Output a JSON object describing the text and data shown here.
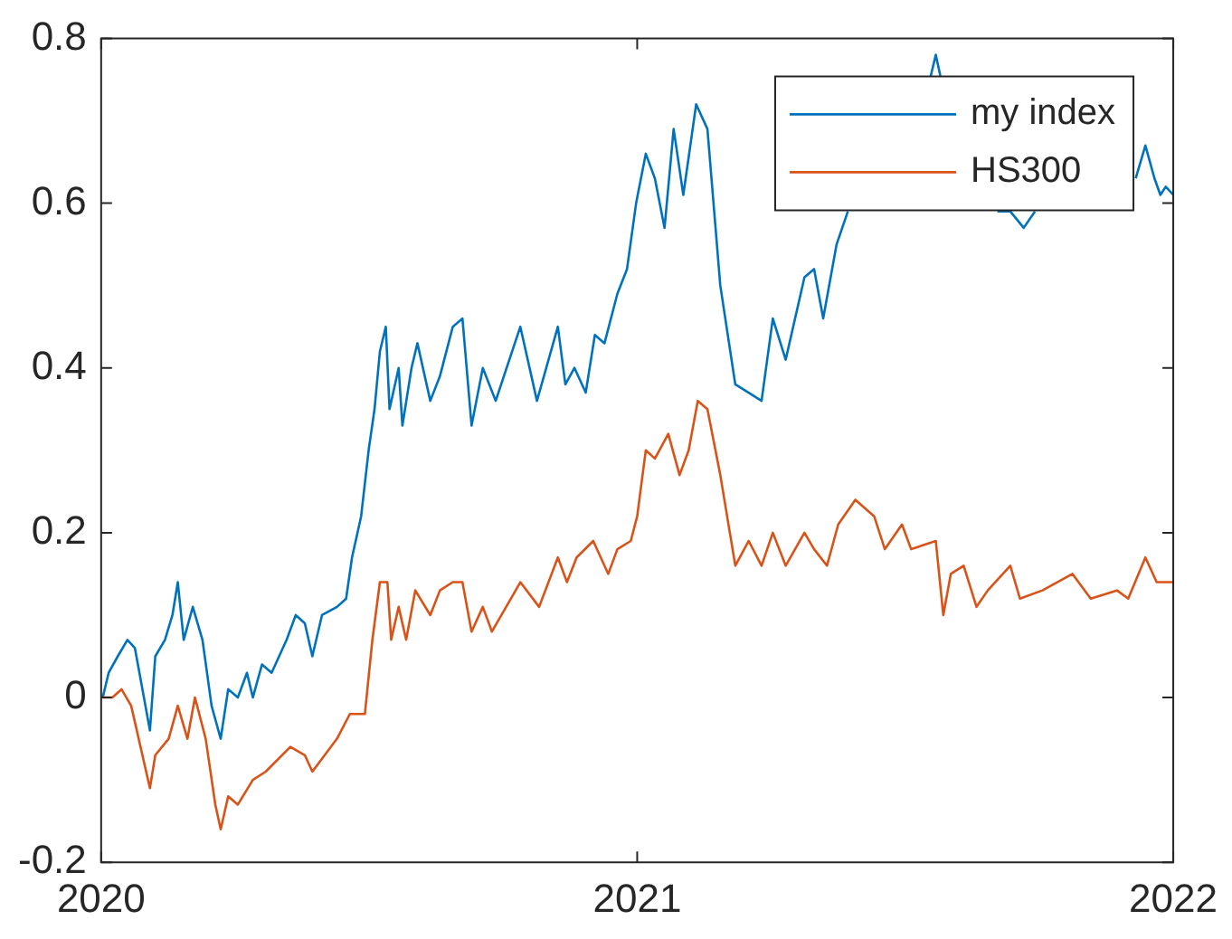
{
  "chart_data": {
    "type": "line",
    "legend": "top right",
    "grid": false,
    "marker": "none",
    "line_style": "solid",
    "xlim": [
      2020,
      2022
    ],
    "xticks": [
      2020,
      2021,
      2022
    ],
    "ylim": [
      -0.2,
      0.8
    ],
    "yticks": [
      {
        "value": -0.2,
        "label": "-0.2"
      },
      0,
      {
        "value": 0.2,
        "label": "0.2"
      },
      {
        "value": 0.4,
        "label": "0.4"
      },
      {
        "value": 0.6,
        "label": "0.6"
      },
      {
        "value": 0.8,
        "label": "0.8"
      }
    ],
    "series": [
      {
        "name": "my index",
        "color": "#0072bd",
        "x": [
          2020.003,
          2020.014,
          2020.031,
          2020.049,
          2020.063,
          2020.091,
          2020.101,
          2020.119,
          2020.133,
          2020.143,
          2020.154,
          2020.171,
          2020.189,
          2020.206,
          2020.223,
          2020.237,
          2020.255,
          2020.272,
          2020.283,
          2020.3,
          2020.318,
          2020.346,
          2020.363,
          2020.38,
          2020.394,
          2020.412,
          2020.44,
          2020.457,
          2020.468,
          2020.485,
          2020.499,
          2020.51,
          2020.52,
          2020.531,
          2020.538,
          2020.555,
          2020.562,
          2020.579,
          2020.59,
          2020.614,
          2020.632,
          2020.656,
          2020.674,
          2020.691,
          2020.712,
          2020.736,
          2020.782,
          2020.813,
          2020.852,
          2020.866,
          2020.883,
          2020.904,
          2020.921,
          2020.939,
          2020.963,
          2020.981,
          2020.998,
          2021.016,
          2021.033,
          2021.051,
          2021.068,
          2021.086,
          2021.11,
          2021.131,
          2021.155,
          2021.183,
          2021.208,
          2021.232,
          2021.253,
          2021.277,
          2021.312,
          2021.33,
          2021.347,
          2021.372,
          2021.393,
          2021.45,
          2021.546,
          2021.557,
          2021.567,
          2021.6,
          2021.672,
          2021.696,
          2021.721,
          2021.742,
          2021.8,
          2021.93,
          2021.948,
          2021.965,
          2021.976,
          2021.986,
          2022
        ],
        "values": [
          0,
          0.03,
          0.05,
          0.07,
          0.06,
          -0.04,
          0.05,
          0.07,
          0.1,
          0.14,
          0.07,
          0.11,
          0.07,
          -0.01,
          -0.05,
          0.01,
          0,
          0.03,
          0,
          0.04,
          0.03,
          0.07,
          0.1,
          0.09,
          0.05,
          0.1,
          0.11,
          0.12,
          0.17,
          0.22,
          0.3,
          0.35,
          0.42,
          0.45,
          0.35,
          0.4,
          0.33,
          0.4,
          0.43,
          0.36,
          0.39,
          0.45,
          0.46,
          0.33,
          0.4,
          0.36,
          0.45,
          0.36,
          0.45,
          0.38,
          0.4,
          0.37,
          0.44,
          0.43,
          0.49,
          0.52,
          0.6,
          0.66,
          0.63,
          0.57,
          0.69,
          0.61,
          0.72,
          0.69,
          0.5,
          0.38,
          0.37,
          0.36,
          0.46,
          0.41,
          0.51,
          0.52,
          0.46,
          0.55,
          0.59,
          null,
          0.75,
          0.78,
          0.75,
          null,
          0.59,
          0.59,
          0.57,
          0.59,
          null,
          0.63,
          0.67,
          0.63,
          0.61,
          0.62,
          0.61
        ]
      },
      {
        "name": "HS300",
        "color": "#d95319",
        "x": [
          2020.003,
          2020.021,
          2020.038,
          2020.056,
          2020.091,
          2020.101,
          2020.126,
          2020.143,
          2020.161,
          2020.175,
          2020.195,
          2020.213,
          2020.223,
          2020.237,
          2020.255,
          2020.283,
          2020.307,
          2020.353,
          2020.38,
          2020.394,
          2020.44,
          2020.464,
          2020.492,
          2020.506,
          2020.52,
          2020.534,
          2020.541,
          2020.555,
          2020.569,
          2020.586,
          2020.614,
          2020.632,
          2020.656,
          2020.674,
          2020.691,
          2020.712,
          2020.729,
          2020.782,
          2020.817,
          2020.852,
          2020.869,
          2020.887,
          2020.918,
          2020.946,
          2020.963,
          2020.988,
          2021,
          2021.016,
          2021.033,
          2021.058,
          2021.079,
          2021.096,
          2021.113,
          2021.131,
          2021.155,
          2021.183,
          2021.208,
          2021.232,
          2021.253,
          2021.277,
          2021.312,
          2021.33,
          2021.354,
          2021.375,
          2021.407,
          2021.442,
          2021.462,
          2021.494,
          2021.511,
          2021.557,
          2021.571,
          2021.585,
          2021.609,
          2021.633,
          2021.654,
          2021.696,
          2021.714,
          2021.756,
          2021.812,
          2021.846,
          2021.895,
          2021.916,
          2021.948,
          2021.969,
          2021.986,
          2022
        ],
        "values": [
          0,
          0,
          0.01,
          -0.01,
          -0.11,
          -0.07,
          -0.05,
          -0.01,
          -0.05,
          0,
          -0.05,
          -0.13,
          -0.16,
          -0.12,
          -0.13,
          -0.1,
          -0.09,
          -0.06,
          -0.07,
          -0.09,
          -0.05,
          -0.02,
          -0.02,
          0.07,
          0.14,
          0.14,
          0.07,
          0.11,
          0.07,
          0.13,
          0.1,
          0.13,
          0.14,
          0.14,
          0.08,
          0.11,
          0.08,
          0.14,
          0.11,
          0.17,
          0.14,
          0.17,
          0.19,
          0.15,
          0.18,
          0.19,
          0.22,
          0.3,
          0.29,
          0.32,
          0.27,
          0.3,
          0.36,
          0.35,
          0.27,
          0.16,
          0.19,
          0.16,
          0.2,
          0.16,
          0.2,
          0.18,
          0.16,
          0.21,
          0.24,
          0.22,
          0.18,
          0.21,
          0.18,
          0.19,
          0.1,
          0.15,
          0.16,
          0.11,
          0.13,
          0.16,
          0.12,
          0.13,
          0.15,
          0.12,
          0.13,
          0.12,
          0.17,
          0.14,
          0.14,
          0.14
        ]
      }
    ]
  }
}
